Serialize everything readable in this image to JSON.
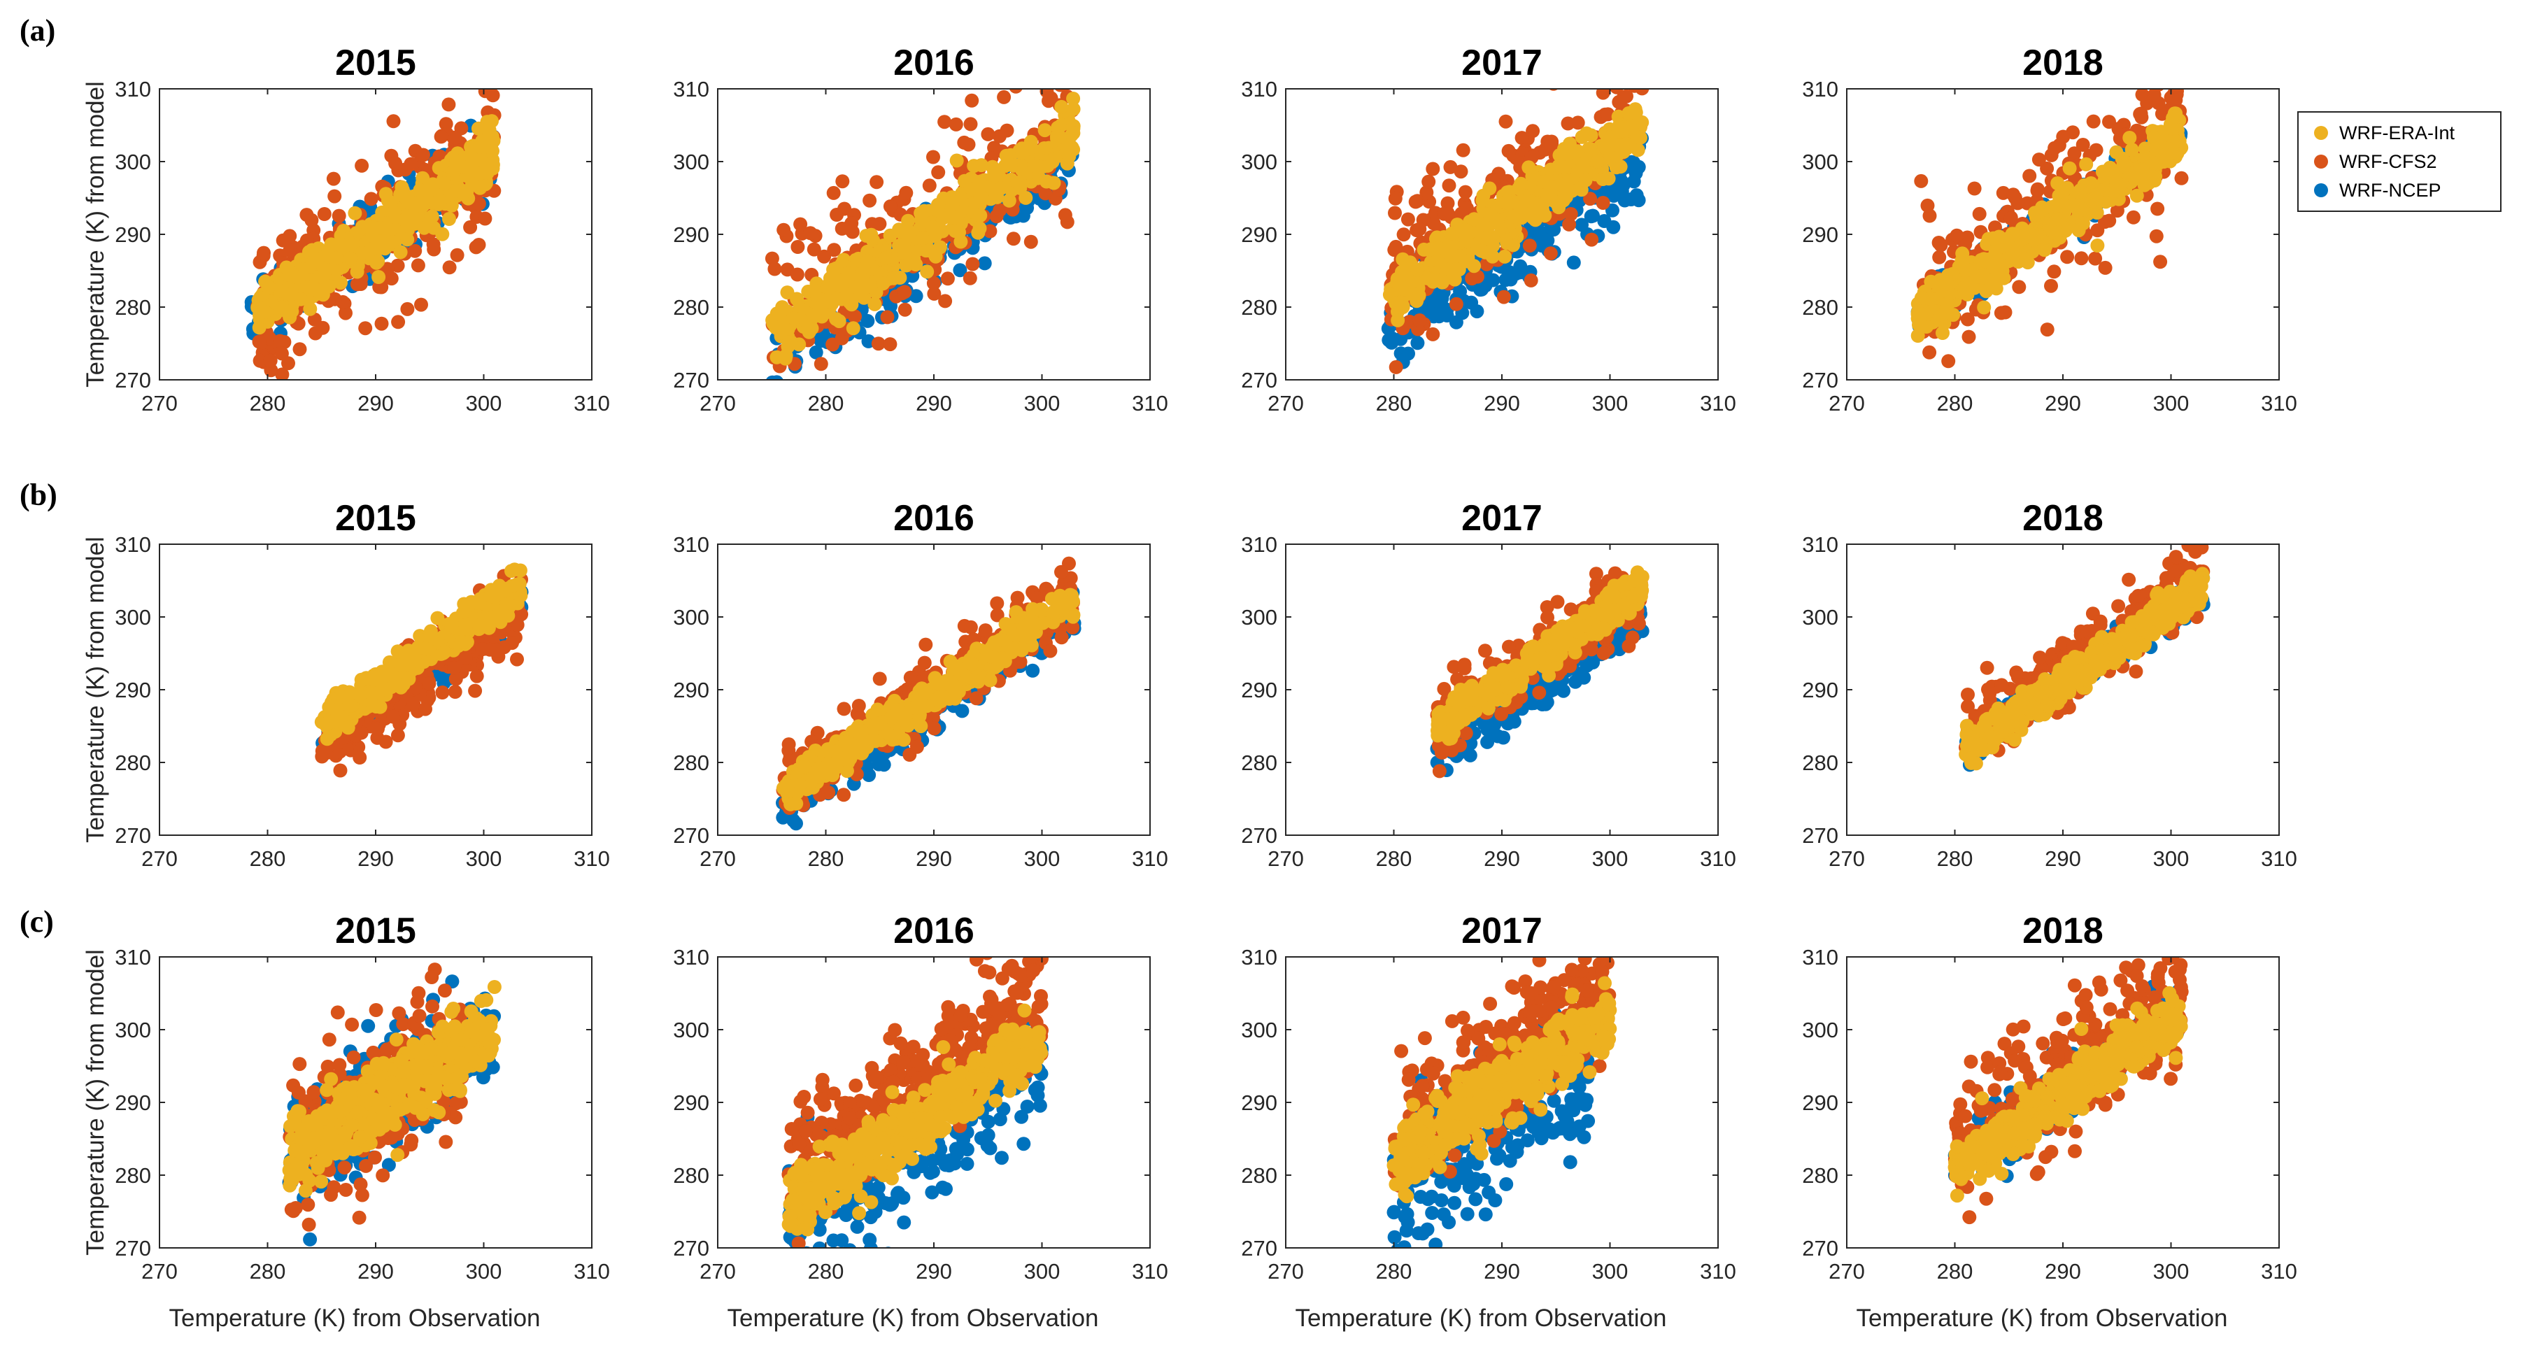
{
  "figure": {
    "panel_letters": [
      "(a)",
      "(b)",
      "(c)"
    ],
    "colors": {
      "WRF-ERA-Int": "#EDB120",
      "WRF-CFS2": "#D95319",
      "WRF-NCEP": "#0072BD"
    }
  },
  "legend": {
    "entries": [
      {
        "name": "WRF-ERA-Int",
        "color": "#EDB120"
      },
      {
        "name": "WRF-CFS2",
        "color": "#D95319"
      },
      {
        "name": "WRF-NCEP",
        "color": "#0072BD"
      }
    ]
  },
  "chart_data": [
    {
      "type": "scatter",
      "row": "(a)",
      "title": "2015",
      "xlim": [
        270,
        310
      ],
      "ylim": [
        270,
        310
      ],
      "xticks": [
        "270",
        "280",
        "290",
        "300",
        "310"
      ],
      "yticks": [
        "270",
        "280",
        "290",
        "300",
        "310"
      ],
      "ylabel": "Temperature (K) from model",
      "xlabel": "",
      "series": [
        {
          "name": "WRF-NCEP",
          "obs_range": [
            278.5,
            301
          ],
          "intercept": 0,
          "slope": 1.0,
          "spread": 2.4,
          "n": 220,
          "seed": 11
        },
        {
          "name": "WRF-CFS2",
          "obs_range": [
            279,
            301
          ],
          "intercept": 0,
          "slope": 1.0,
          "spread": 5.2,
          "n": 260,
          "seed": 12
        },
        {
          "name": "WRF-ERA-Int",
          "obs_range": [
            279,
            301
          ],
          "intercept": 0,
          "slope": 1.0,
          "spread": 1.8,
          "n": 420,
          "seed": 13
        }
      ]
    },
    {
      "type": "scatter",
      "row": "(a)",
      "title": "2016",
      "xlim": [
        270,
        310
      ],
      "ylim": [
        270,
        310
      ],
      "xticks": [
        "270",
        "280",
        "290",
        "300",
        "310"
      ],
      "yticks": [
        "270",
        "280",
        "290",
        "300",
        "310"
      ],
      "ylabel": "",
      "xlabel": "",
      "series": [
        {
          "name": "WRF-NCEP",
          "obs_range": [
            275,
            303
          ],
          "intercept": -2,
          "slope": 1.0,
          "spread": 2.6,
          "n": 230,
          "seed": 21
        },
        {
          "name": "WRF-CFS2",
          "obs_range": [
            275,
            303
          ],
          "intercept": 2,
          "slope": 1.0,
          "spread": 5.5,
          "n": 260,
          "seed": 22
        },
        {
          "name": "WRF-ERA-Int",
          "obs_range": [
            275,
            303
          ],
          "intercept": 1,
          "slope": 1.0,
          "spread": 2.0,
          "n": 420,
          "seed": 23
        }
      ]
    },
    {
      "type": "scatter",
      "row": "(a)",
      "title": "2017",
      "xlim": [
        270,
        310
      ],
      "ylim": [
        270,
        310
      ],
      "xticks": [
        "270",
        "280",
        "290",
        "300",
        "310"
      ],
      "yticks": [
        "270",
        "280",
        "290",
        "300",
        "310"
      ],
      "ylabel": "",
      "xlabel": "",
      "series": [
        {
          "name": "WRF-NCEP",
          "obs_range": [
            279.5,
            303
          ],
          "intercept": -3,
          "slope": 1.0,
          "spread": 2.8,
          "n": 230,
          "seed": 31
        },
        {
          "name": "WRF-CFS2",
          "obs_range": [
            279.5,
            303
          ],
          "intercept": 4,
          "slope": 1.0,
          "spread": 4.5,
          "n": 260,
          "seed": 32
        },
        {
          "name": "WRF-ERA-Int",
          "obs_range": [
            279.5,
            303
          ],
          "intercept": 2,
          "slope": 1.0,
          "spread": 1.8,
          "n": 420,
          "seed": 33
        }
      ]
    },
    {
      "type": "scatter",
      "row": "(a)",
      "title": "2018",
      "xlim": [
        270,
        310
      ],
      "ylim": [
        270,
        310
      ],
      "xticks": [
        "270",
        "280",
        "290",
        "300",
        "310"
      ],
      "yticks": [
        "270",
        "280",
        "290",
        "300",
        "310"
      ],
      "ylabel": "",
      "xlabel": "",
      "series": [
        {
          "name": "WRF-NCEP",
          "obs_range": [
            276.5,
            301
          ],
          "intercept": 3,
          "slope": 1.0,
          "spread": 1.6,
          "n": 220,
          "seed": 41
        },
        {
          "name": "WRF-CFS2",
          "obs_range": [
            276.5,
            301
          ],
          "intercept": 4,
          "slope": 1.0,
          "spread": 5.0,
          "n": 240,
          "seed": 42
        },
        {
          "name": "WRF-ERA-Int",
          "obs_range": [
            276.5,
            301
          ],
          "intercept": 2.5,
          "slope": 1.0,
          "spread": 1.8,
          "n": 420,
          "seed": 43
        }
      ]
    },
    {
      "type": "scatter",
      "row": "(b)",
      "title": "2015",
      "xlim": [
        270,
        310
      ],
      "ylim": [
        270,
        310
      ],
      "xticks": [
        "270",
        "280",
        "290",
        "300",
        "310"
      ],
      "yticks": [
        "270",
        "280",
        "290",
        "300",
        "310"
      ],
      "ylabel": "Temperature (K) from model",
      "xlabel": "",
      "series": [
        {
          "name": "WRF-NCEP",
          "obs_range": [
            285,
            303.5
          ],
          "intercept": -1.5,
          "slope": 1.0,
          "spread": 1.3,
          "n": 220,
          "seed": 51
        },
        {
          "name": "WRF-CFS2",
          "obs_range": [
            285,
            303.5
          ],
          "intercept": -2.5,
          "slope": 1.0,
          "spread": 2.3,
          "n": 260,
          "seed": 52
        },
        {
          "name": "WRF-ERA-Int",
          "obs_range": [
            285,
            303.5
          ],
          "intercept": 0.5,
          "slope": 1.0,
          "spread": 1.2,
          "n": 420,
          "seed": 53
        }
      ]
    },
    {
      "type": "scatter",
      "row": "(b)",
      "title": "2016",
      "xlim": [
        270,
        310
      ],
      "ylim": [
        270,
        310
      ],
      "xticks": [
        "270",
        "280",
        "290",
        "300",
        "310"
      ],
      "yticks": [
        "270",
        "280",
        "290",
        "300",
        "310"
      ],
      "ylabel": "",
      "xlabel": "",
      "series": [
        {
          "name": "WRF-NCEP",
          "obs_range": [
            276,
            303
          ],
          "intercept": -2.5,
          "slope": 1.0,
          "spread": 1.6,
          "n": 220,
          "seed": 61
        },
        {
          "name": "WRF-CFS2",
          "obs_range": [
            276,
            303
          ],
          "intercept": 0,
          "slope": 1.0,
          "spread": 2.6,
          "n": 260,
          "seed": 62
        },
        {
          "name": "WRF-ERA-Int",
          "obs_range": [
            276,
            303
          ],
          "intercept": -0.5,
          "slope": 1.0,
          "spread": 1.2,
          "n": 420,
          "seed": 63
        }
      ]
    },
    {
      "type": "scatter",
      "row": "(b)",
      "title": "2017",
      "xlim": [
        270,
        310
      ],
      "ylim": [
        270,
        310
      ],
      "xticks": [
        "270",
        "280",
        "290",
        "300",
        "310"
      ],
      "yticks": [
        "270",
        "280",
        "290",
        "300",
        "310"
      ],
      "ylabel": "",
      "xlabel": "",
      "series": [
        {
          "name": "WRF-NCEP",
          "obs_range": [
            284,
            303
          ],
          "intercept": -3,
          "slope": 1.0,
          "spread": 1.5,
          "n": 220,
          "seed": 71
        },
        {
          "name": "WRF-CFS2",
          "obs_range": [
            284,
            303
          ],
          "intercept": 1,
          "slope": 1.0,
          "spread": 2.5,
          "n": 260,
          "seed": 72
        },
        {
          "name": "WRF-ERA-Int",
          "obs_range": [
            284,
            303
          ],
          "intercept": 1,
          "slope": 1.0,
          "spread": 1.2,
          "n": 420,
          "seed": 73
        }
      ]
    },
    {
      "type": "scatter",
      "row": "(b)",
      "title": "2018",
      "xlim": [
        270,
        310
      ],
      "ylim": [
        270,
        310
      ],
      "xticks": [
        "270",
        "280",
        "290",
        "300",
        "310"
      ],
      "yticks": [
        "270",
        "280",
        "290",
        "300",
        "310"
      ],
      "ylabel": "",
      "xlabel": "",
      "series": [
        {
          "name": "WRF-NCEP",
          "obs_range": [
            281,
            303
          ],
          "intercept": 1,
          "slope": 1.0,
          "spread": 1.2,
          "n": 220,
          "seed": 81
        },
        {
          "name": "WRF-CFS2",
          "obs_range": [
            281,
            303
          ],
          "intercept": 2.5,
          "slope": 1.0,
          "spread": 2.4,
          "n": 260,
          "seed": 82
        },
        {
          "name": "WRF-ERA-Int",
          "obs_range": [
            281,
            303
          ],
          "intercept": 1,
          "slope": 1.0,
          "spread": 1.2,
          "n": 420,
          "seed": 83
        }
      ]
    },
    {
      "type": "scatter",
      "row": "(c)",
      "title": "2015",
      "xlim": [
        270,
        310
      ],
      "ylim": [
        270,
        310
      ],
      "xticks": [
        "270",
        "280",
        "290",
        "300",
        "310"
      ],
      "yticks": [
        "270",
        "280",
        "290",
        "300",
        "310"
      ],
      "ylabel": "Temperature (K) from model",
      "xlabel": "Temperature (K) from Observation",
      "series": [
        {
          "name": "WRF-NCEP",
          "obs_range": [
            282,
            301
          ],
          "intercept": -0.5,
          "slope": 1.0,
          "spread": 4.2,
          "n": 240,
          "seed": 91
        },
        {
          "name": "WRF-CFS2",
          "obs_range": [
            282,
            298
          ],
          "intercept": 0,
          "slope": 1.0,
          "spread": 4.8,
          "n": 300,
          "seed": 92
        },
        {
          "name": "WRF-ERA-Int",
          "obs_range": [
            282,
            301
          ],
          "intercept": 0,
          "slope": 0.9,
          "spread": 2.5,
          "n": 420,
          "seed": 93
        }
      ]
    },
    {
      "type": "scatter",
      "row": "(c)",
      "title": "2016",
      "xlim": [
        270,
        310
      ],
      "ylim": [
        270,
        310
      ],
      "xticks": [
        "270",
        "280",
        "290",
        "300",
        "310"
      ],
      "yticks": [
        "270",
        "280",
        "290",
        "300",
        "310"
      ],
      "ylabel": "",
      "xlabel": "Temperature (K) from Observation",
      "series": [
        {
          "name": "WRF-NCEP",
          "obs_range": [
            276.5,
            300
          ],
          "intercept": -4,
          "slope": 1.0,
          "spread": 4.0,
          "n": 240,
          "seed": 101
        },
        {
          "name": "WRF-CFS2",
          "obs_range": [
            276.5,
            300
          ],
          "intercept": 5,
          "slope": 1.0,
          "spread": 4.0,
          "n": 300,
          "seed": 102
        },
        {
          "name": "WRF-ERA-Int",
          "obs_range": [
            276.5,
            300
          ],
          "intercept": -1,
          "slope": 1.0,
          "spread": 2.2,
          "n": 420,
          "seed": 103
        }
      ]
    },
    {
      "type": "scatter",
      "row": "(c)",
      "title": "2017",
      "xlim": [
        270,
        310
      ],
      "ylim": [
        270,
        310
      ],
      "xticks": [
        "270",
        "280",
        "290",
        "300",
        "310"
      ],
      "yticks": [
        "270",
        "280",
        "290",
        "300",
        "310"
      ],
      "ylabel": "",
      "xlabel": "Temperature (K) from Observation",
      "series": [
        {
          "name": "WRF-NCEP",
          "obs_range": [
            280,
            298
          ],
          "intercept": -3,
          "slope": 1.0,
          "spread": 5.0,
          "n": 260,
          "seed": 111
        },
        {
          "name": "WRF-CFS2",
          "obs_range": [
            280,
            300
          ],
          "intercept": 5,
          "slope": 1.0,
          "spread": 4.5,
          "n": 300,
          "seed": 112
        },
        {
          "name": "WRF-ERA-Int",
          "obs_range": [
            280,
            300
          ],
          "intercept": 2,
          "slope": 1.0,
          "spread": 2.4,
          "n": 420,
          "seed": 113
        }
      ]
    },
    {
      "type": "scatter",
      "row": "(c)",
      "title": "2018",
      "xlim": [
        270,
        310
      ],
      "ylim": [
        270,
        310
      ],
      "xticks": [
        "270",
        "280",
        "290",
        "300",
        "310"
      ],
      "yticks": [
        "270",
        "280",
        "290",
        "300",
        "310"
      ],
      "ylabel": "",
      "xlabel": "Temperature (K) from Observation",
      "series": [
        {
          "name": "WRF-NCEP",
          "obs_range": [
            280,
            301
          ],
          "intercept": 2,
          "slope": 1.0,
          "spread": 2.0,
          "n": 230,
          "seed": 121
        },
        {
          "name": "WRF-CFS2",
          "obs_range": [
            280,
            301
          ],
          "intercept": 4,
          "slope": 1.0,
          "spread": 4.5,
          "n": 280,
          "seed": 122
        },
        {
          "name": "WRF-ERA-Int",
          "obs_range": [
            280,
            301
          ],
          "intercept": 1,
          "slope": 1.0,
          "spread": 1.8,
          "n": 420,
          "seed": 123
        }
      ]
    }
  ]
}
